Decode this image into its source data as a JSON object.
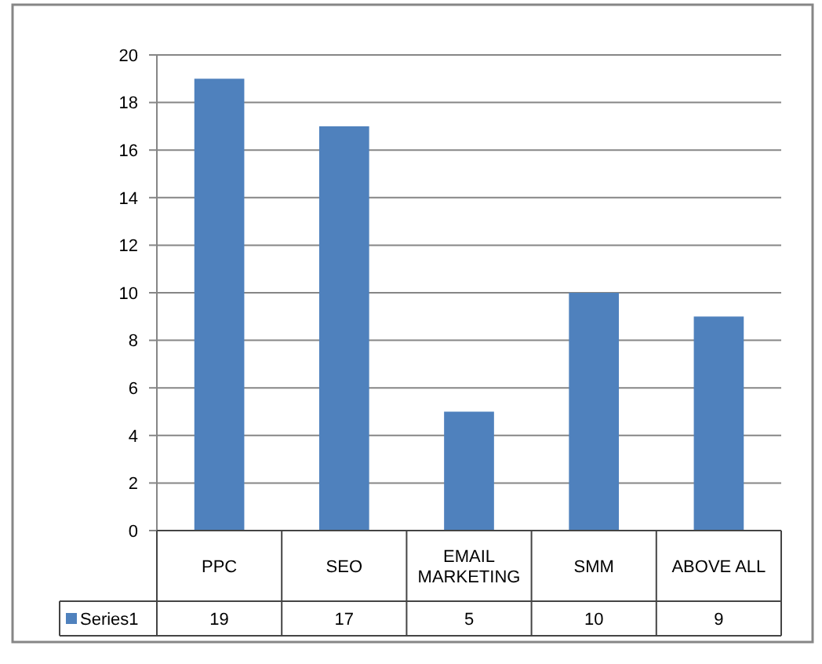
{
  "chart_data": {
    "type": "bar",
    "categories": [
      "PPC",
      "SEO",
      "EMAIL MARKETING",
      "SMM",
      "ABOVE ALL"
    ],
    "series": [
      {
        "name": "Series1",
        "color": "#4f81bd",
        "values": [
          19,
          17,
          5,
          10,
          9
        ]
      }
    ],
    "ylim": [
      0,
      20
    ],
    "yticks": [
      0,
      2,
      4,
      6,
      8,
      10,
      12,
      14,
      16,
      18,
      20
    ],
    "grid": "y",
    "legend": "bottom",
    "data_labels": true
  }
}
